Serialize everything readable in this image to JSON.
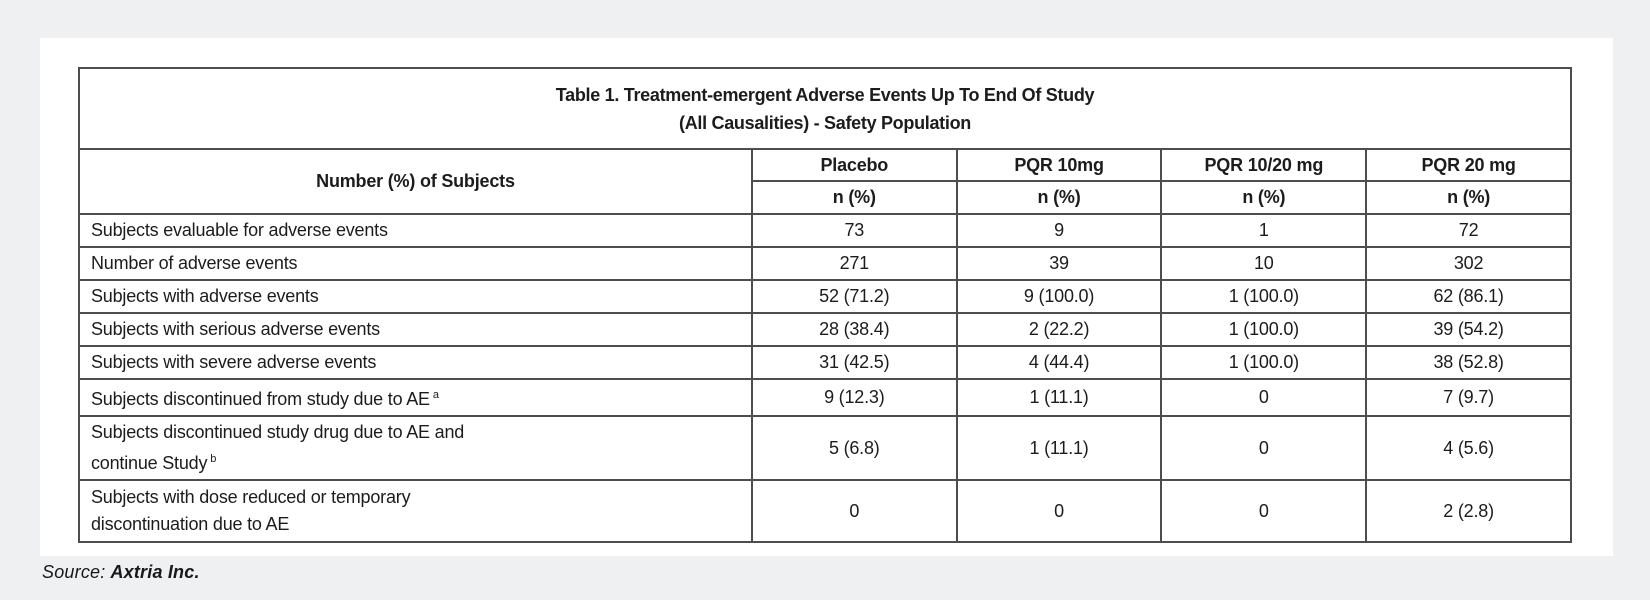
{
  "page": {
    "background_color": "#eef0f2",
    "card_color": "#ffffff",
    "border_color": "#4d4d4d",
    "text_color": "#1c1c1c"
  },
  "source": {
    "prefix": "Source:",
    "name": "Axtria Inc."
  },
  "chart_data": {
    "type": "table",
    "title_line1": "Table 1. Treatment-emergent Adverse Events Up To End Of Study",
    "title_line2": "(All Causalities) - Safety Population",
    "row_header": "Number (%) of Subjects",
    "column_groups": [
      "Placebo",
      "PQR 10mg",
      "PQR 10/20 mg",
      "PQR 20 mg"
    ],
    "column_subheader": "n (%)",
    "rows": [
      {
        "label_lines": [
          "Subjects evaluable for adverse events"
        ],
        "sup": "",
        "values": [
          "73",
          "9",
          "1",
          "72"
        ],
        "tall": false
      },
      {
        "label_lines": [
          "Number of adverse events"
        ],
        "sup": "",
        "values": [
          "271",
          "39",
          "10",
          "302"
        ],
        "tall": false
      },
      {
        "label_lines": [
          "Subjects with adverse events"
        ],
        "sup": "",
        "values": [
          "52 (71.2)",
          "9 (100.0)",
          "1 (100.0)",
          "62 (86.1)"
        ],
        "tall": false
      },
      {
        "label_lines": [
          "Subjects with serious adverse events"
        ],
        "sup": "",
        "values": [
          "28 (38.4)",
          "2 (22.2)",
          "1 (100.0)",
          "39 (54.2)"
        ],
        "tall": false
      },
      {
        "label_lines": [
          "Subjects with severe adverse events"
        ],
        "sup": "",
        "values": [
          "31 (42.5)",
          "4 (44.4)",
          "1 (100.0)",
          "38 (52.8)"
        ],
        "tall": false
      },
      {
        "label_lines": [
          "Subjects discontinued from study due to AE"
        ],
        "sup": "a",
        "values": [
          "9 (12.3)",
          "1 (11.1)",
          "0",
          "7 (9.7)"
        ],
        "tall": false
      },
      {
        "label_lines": [
          "Subjects discontinued study drug due to AE and",
          "continue Study"
        ],
        "sup": "b",
        "values": [
          "5 (6.8)",
          "1 (11.1)",
          "0",
          "4 (5.6)"
        ],
        "tall": true
      },
      {
        "label_lines": [
          "Subjects with dose reduced or temporary",
          "discontinuation due to AE"
        ],
        "sup": "",
        "values": [
          "0",
          "0",
          "0",
          "2 (2.8)"
        ],
        "tall": true
      }
    ]
  }
}
